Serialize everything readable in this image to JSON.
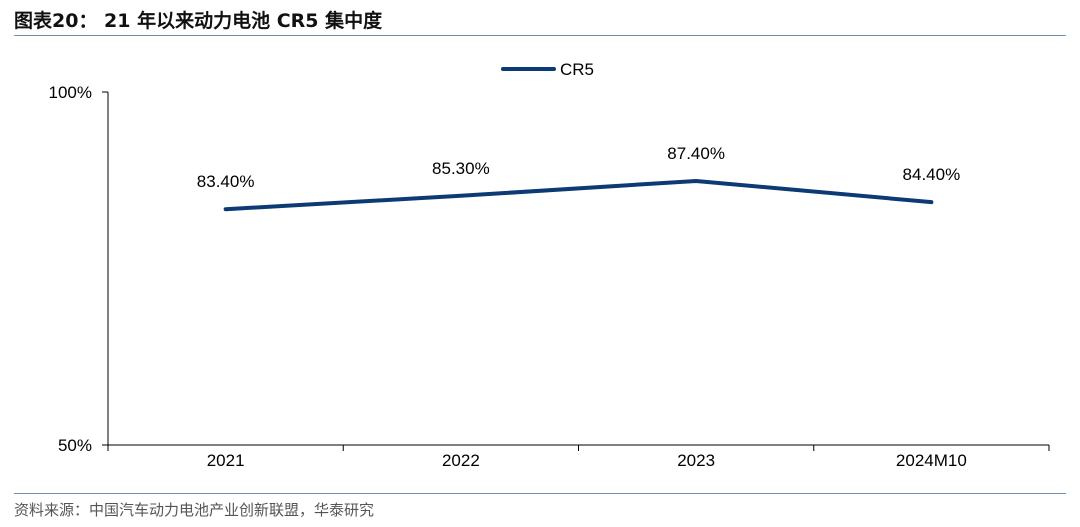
{
  "header": {
    "title": "图表20： 21 年以来动力电池 CR5 集中度"
  },
  "footer": {
    "source": "资料来源：中国汽车动力电池产业创新联盟，华泰研究"
  },
  "chart_data": {
    "type": "line",
    "categories": [
      "2021",
      "2022",
      "2023",
      "2024M10"
    ],
    "series": [
      {
        "name": "CR5",
        "values": [
          83.4,
          85.3,
          87.4,
          84.4
        ],
        "color": "#0b3a74",
        "data_labels": [
          "83.40%",
          "85.30%",
          "87.40%",
          "84.40%"
        ]
      }
    ],
    "ylim": [
      50,
      100
    ],
    "y_tick_labels": [
      "100%",
      "50%"
    ],
    "legend": "top-center",
    "grid": false
  }
}
